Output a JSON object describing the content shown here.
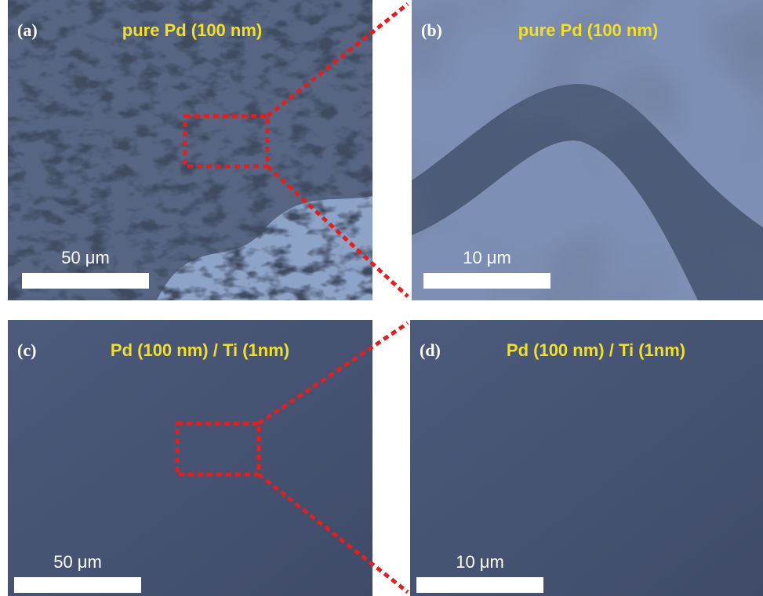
{
  "panels": [
    {
      "label": "(a)",
      "title": "pure Pd (100 nm)",
      "scale_bar": "50 μm"
    },
    {
      "label": "(b)",
      "title": "pure Pd (100 nm)",
      "scale_bar": "10 μm"
    },
    {
      "label": "(c)",
      "title": "Pd (100 nm) / Ti (1nm)",
      "scale_bar": "50 μm"
    },
    {
      "label": "(d)",
      "title": "Pd (100 nm) / Ti (1nm)",
      "scale_bar": "10 μm"
    }
  ]
}
